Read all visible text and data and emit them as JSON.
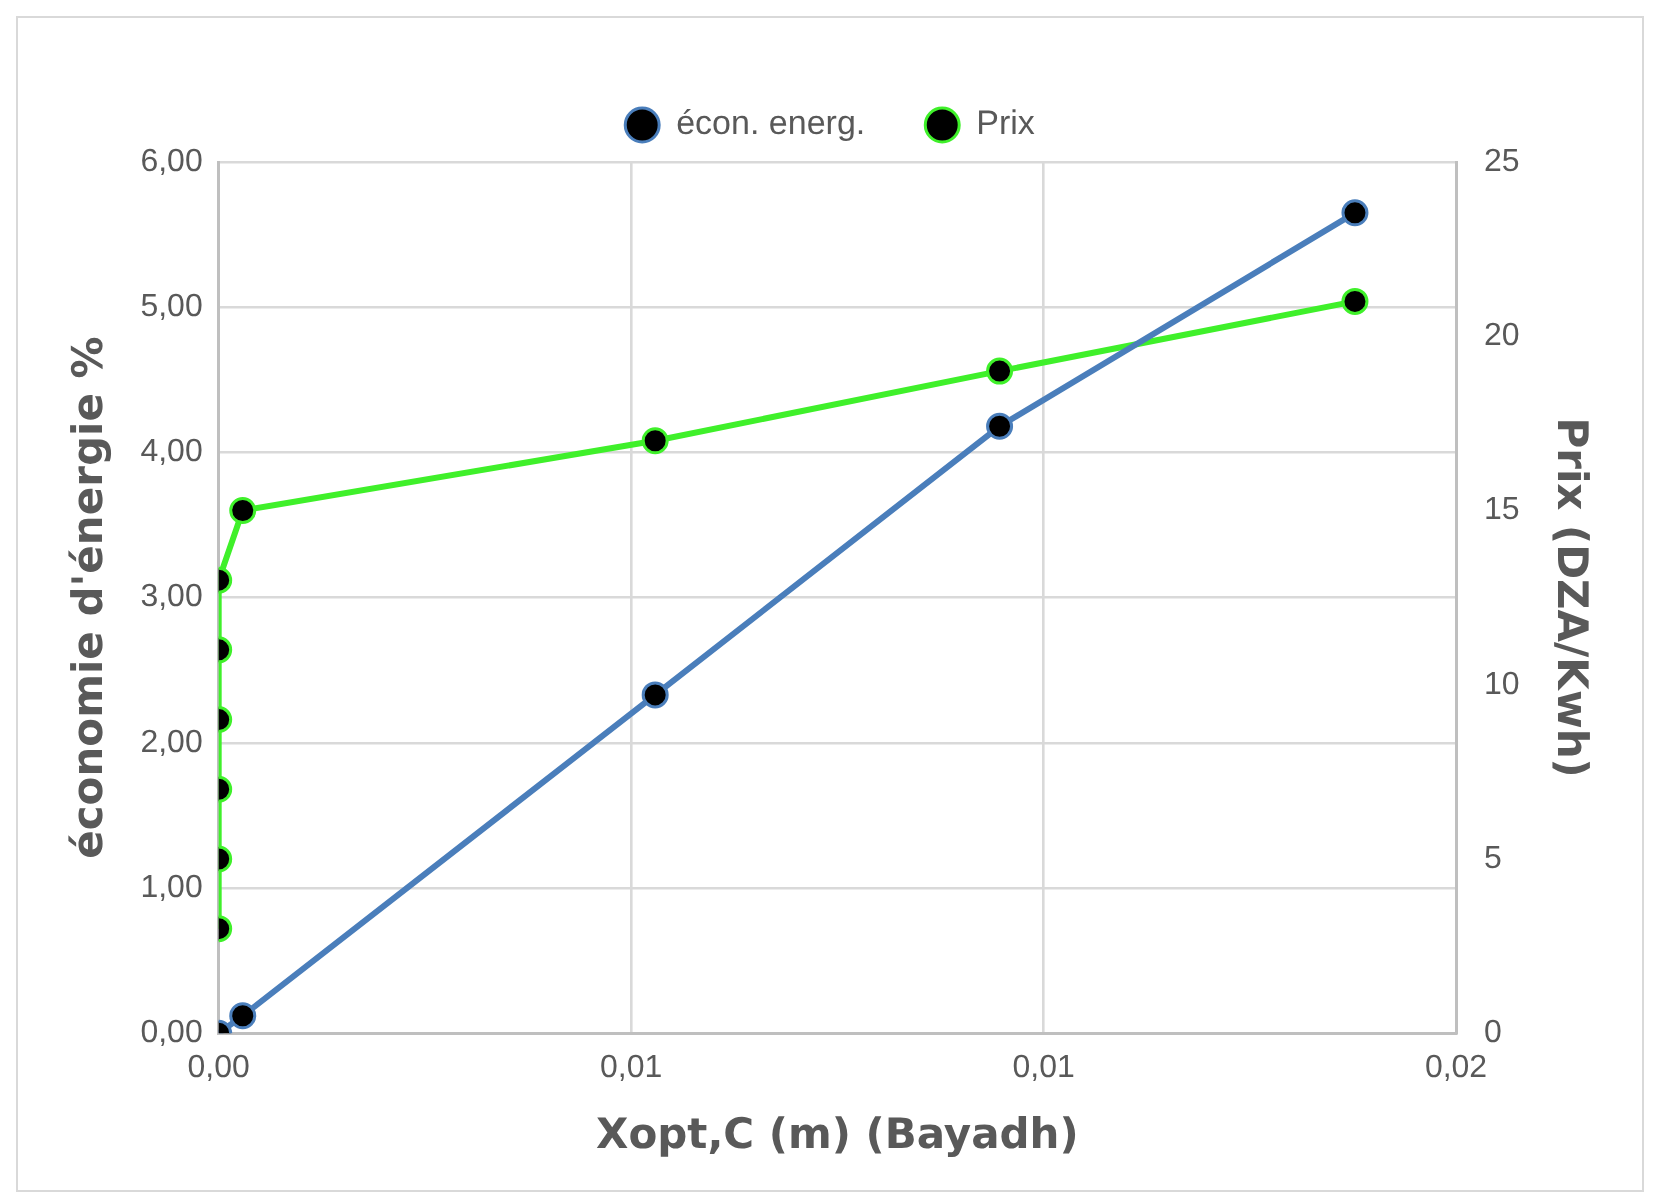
{
  "chart_data": {
    "type": "line",
    "xlabel": "Xopt,C (m) (Bayadh)",
    "ylabel": "économie d'énergie %",
    "y2label": "Prix (DZA/Kwh)",
    "xlim": [
      0,
      0.018
    ],
    "xticks": [
      {
        "value": 0,
        "label": "0,00"
      },
      {
        "value": 0.006,
        "label": "0,01"
      },
      {
        "value": 0.012,
        "label": "0,01"
      },
      {
        "value": 0.018,
        "label": "0,02"
      }
    ],
    "ylim": [
      0,
      6
    ],
    "yticks": [
      {
        "value": 0,
        "label": "0,00"
      },
      {
        "value": 1,
        "label": "1,00"
      },
      {
        "value": 2,
        "label": "2,00"
      },
      {
        "value": 3,
        "label": "3,00"
      },
      {
        "value": 4,
        "label": "4,00"
      },
      {
        "value": 5,
        "label": "5,00"
      },
      {
        "value": 6,
        "label": "6,00"
      }
    ],
    "y2lim": [
      0,
      25
    ],
    "y2ticks": [
      0,
      5,
      10,
      15,
      20,
      25
    ],
    "series": [
      {
        "name": "écon. energ.",
        "color": "#4a7ebb",
        "x": [
          0,
          0.00035,
          0.00635,
          0.01136,
          0.01653
        ],
        "values": [
          0,
          0.12,
          2.33,
          4.18,
          5.65
        ]
      },
      {
        "name": "Prix",
        "color": "#3ff02a",
        "axis": "y2",
        "x": [
          0,
          0,
          0,
          0,
          0,
          0,
          0.00035,
          0.00635,
          0.01136,
          0.01653
        ],
        "values": [
          3,
          5,
          7,
          9,
          11,
          13,
          15,
          17,
          19,
          21
        ]
      }
    ],
    "grid": true,
    "legend": "top",
    "marker": "circle",
    "line_style": "solid"
  }
}
